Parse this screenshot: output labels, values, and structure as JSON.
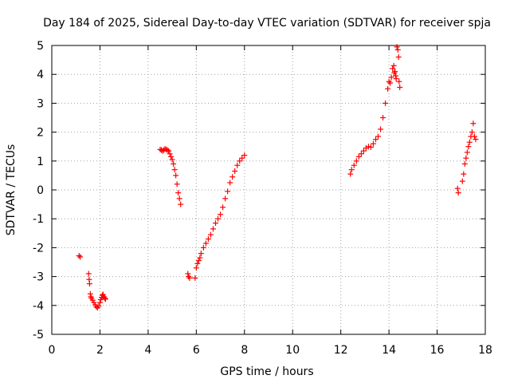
{
  "chart_data": {
    "type": "scatter",
    "title": "Day 184 of 2025, Sidereal Day-to-day VTEC variation (SDTVAR) for receiver spja",
    "xlabel": "GPS time / hours",
    "ylabel": "SDTVAR / TECUs",
    "xlim": [
      0,
      18
    ],
    "ylim": [
      -5,
      5
    ],
    "xticks": [
      0,
      2,
      4,
      6,
      8,
      10,
      12,
      14,
      16,
      18
    ],
    "yticks": [
      -5,
      -4,
      -3,
      -2,
      -1,
      0,
      1,
      2,
      3,
      4,
      5
    ],
    "grid": true,
    "marker": "+",
    "color": "#ff0000",
    "series": [
      {
        "name": "SDTVAR",
        "points": [
          [
            1.13,
            -2.28
          ],
          [
            1.18,
            -2.32
          ],
          [
            1.53,
            -2.9
          ],
          [
            1.55,
            -3.1
          ],
          [
            1.57,
            -3.25
          ],
          [
            1.6,
            -3.6
          ],
          [
            1.62,
            -3.7
          ],
          [
            1.65,
            -3.75
          ],
          [
            1.7,
            -3.82
          ],
          [
            1.75,
            -3.9
          ],
          [
            1.8,
            -3.98
          ],
          [
            1.85,
            -4.05
          ],
          [
            1.9,
            -4.08
          ],
          [
            1.95,
            -4.02
          ],
          [
            2.0,
            -3.9
          ],
          [
            2.03,
            -3.8
          ],
          [
            2.07,
            -3.72
          ],
          [
            2.1,
            -3.65
          ],
          [
            2.13,
            -3.62
          ],
          [
            2.17,
            -3.7
          ],
          [
            2.2,
            -3.75
          ],
          [
            2.23,
            -3.78
          ],
          [
            4.5,
            1.4
          ],
          [
            4.55,
            1.38
          ],
          [
            4.6,
            1.35
          ],
          [
            4.65,
            1.38
          ],
          [
            4.7,
            1.42
          ],
          [
            4.75,
            1.4
          ],
          [
            4.8,
            1.38
          ],
          [
            4.85,
            1.35
          ],
          [
            4.9,
            1.25
          ],
          [
            4.95,
            1.15
          ],
          [
            5.0,
            1.05
          ],
          [
            5.05,
            0.9
          ],
          [
            5.1,
            0.7
          ],
          [
            5.15,
            0.5
          ],
          [
            5.2,
            0.2
          ],
          [
            5.25,
            -0.1
          ],
          [
            5.3,
            -0.3
          ],
          [
            5.35,
            -0.5
          ],
          [
            5.65,
            -2.9
          ],
          [
            5.68,
            -3.0
          ],
          [
            5.72,
            -3.05
          ],
          [
            5.95,
            -3.05
          ],
          [
            6.0,
            -2.7
          ],
          [
            6.05,
            -2.55
          ],
          [
            6.1,
            -2.45
          ],
          [
            6.15,
            -2.35
          ],
          [
            6.2,
            -2.2
          ],
          [
            6.3,
            -2.0
          ],
          [
            6.4,
            -1.85
          ],
          [
            6.5,
            -1.7
          ],
          [
            6.6,
            -1.55
          ],
          [
            6.7,
            -1.35
          ],
          [
            6.8,
            -1.15
          ],
          [
            6.9,
            -1.0
          ],
          [
            7.0,
            -0.85
          ],
          [
            7.1,
            -0.6
          ],
          [
            7.2,
            -0.3
          ],
          [
            7.3,
            -0.05
          ],
          [
            7.4,
            0.25
          ],
          [
            7.5,
            0.45
          ],
          [
            7.6,
            0.65
          ],
          [
            7.7,
            0.85
          ],
          [
            7.8,
            1.0
          ],
          [
            7.9,
            1.1
          ],
          [
            8.0,
            1.2
          ],
          [
            12.4,
            0.55
          ],
          [
            12.45,
            0.7
          ],
          [
            12.55,
            0.85
          ],
          [
            12.65,
            1.0
          ],
          [
            12.75,
            1.15
          ],
          [
            12.85,
            1.25
          ],
          [
            12.95,
            1.35
          ],
          [
            13.05,
            1.45
          ],
          [
            13.15,
            1.5
          ],
          [
            13.25,
            1.48
          ],
          [
            13.35,
            1.6
          ],
          [
            13.45,
            1.75
          ],
          [
            13.55,
            1.85
          ],
          [
            13.65,
            2.1
          ],
          [
            13.75,
            2.5
          ],
          [
            13.85,
            3.0
          ],
          [
            13.95,
            3.5
          ],
          [
            14.0,
            3.75
          ],
          [
            14.05,
            3.7
          ],
          [
            14.1,
            3.9
          ],
          [
            14.15,
            4.2
          ],
          [
            14.2,
            4.3
          ],
          [
            14.22,
            4.05
          ],
          [
            14.25,
            4.1
          ],
          [
            14.28,
            3.95
          ],
          [
            14.3,
            3.85
          ],
          [
            14.33,
            4.95
          ],
          [
            14.37,
            4.85
          ],
          [
            14.4,
            4.6
          ],
          [
            14.42,
            3.75
          ],
          [
            14.45,
            3.55
          ],
          [
            16.85,
            0.05
          ],
          [
            16.88,
            -0.1
          ],
          [
            17.05,
            0.3
          ],
          [
            17.1,
            0.55
          ],
          [
            17.15,
            0.9
          ],
          [
            17.2,
            1.1
          ],
          [
            17.25,
            1.3
          ],
          [
            17.3,
            1.5
          ],
          [
            17.35,
            1.65
          ],
          [
            17.4,
            1.85
          ],
          [
            17.45,
            2.0
          ],
          [
            17.5,
            2.3
          ],
          [
            17.55,
            1.85
          ],
          [
            17.6,
            1.75
          ]
        ]
      }
    ]
  }
}
